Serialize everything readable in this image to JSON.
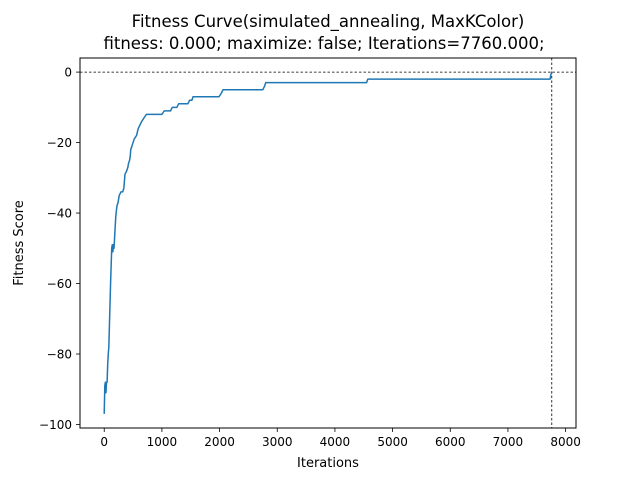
{
  "chart_data": {
    "type": "line",
    "title": "Fitness Curve(simulated_annealing, MaxKColor)",
    "subtitle": "fitness: 0.000; maximize: false; Iterations=7760.000;",
    "xlabel": "Iterations",
    "ylabel": "Fitness Score",
    "xlim": [
      -420,
      8180
    ],
    "ylim": [
      -101,
      4
    ],
    "x_ticks": [
      0,
      1000,
      2000,
      3000,
      4000,
      5000,
      6000,
      7000,
      8000
    ],
    "y_ticks": [
      0,
      -20,
      -40,
      -60,
      -80,
      -100
    ],
    "x_tick_labels": [
      "0",
      "1000",
      "2000",
      "3000",
      "4000",
      "5000",
      "6000",
      "7000",
      "8000"
    ],
    "y_tick_labels": [
      "0",
      "−20",
      "−40",
      "−60",
      "−80",
      "−100"
    ],
    "grid": false,
    "legend": false,
    "reference_lines": {
      "horizontal_y": 0,
      "vertical_x": 7760,
      "style": "dashed"
    },
    "series": [
      {
        "color": "#1f77b4",
        "points": [
          [
            0,
            -97
          ],
          [
            5,
            -93
          ],
          [
            10,
            -89
          ],
          [
            20,
            -88
          ],
          [
            30,
            -91
          ],
          [
            40,
            -88
          ],
          [
            50,
            -88
          ],
          [
            60,
            -83
          ],
          [
            70,
            -80
          ],
          [
            80,
            -78
          ],
          [
            90,
            -72
          ],
          [
            100,
            -66
          ],
          [
            110,
            -60
          ],
          [
            120,
            -55
          ],
          [
            130,
            -50
          ],
          [
            140,
            -49
          ],
          [
            150,
            -51
          ],
          [
            160,
            -49
          ],
          [
            170,
            -50
          ],
          [
            180,
            -47
          ],
          [
            190,
            -44
          ],
          [
            200,
            -41
          ],
          [
            220,
            -38
          ],
          [
            240,
            -37
          ],
          [
            260,
            -35
          ],
          [
            290,
            -34
          ],
          [
            320,
            -34
          ],
          [
            340,
            -33
          ],
          [
            350,
            -31
          ],
          [
            360,
            -29
          ],
          [
            390,
            -28
          ],
          [
            410,
            -27
          ],
          [
            420,
            -26
          ],
          [
            440,
            -25
          ],
          [
            450,
            -24
          ],
          [
            460,
            -22
          ],
          [
            480,
            -21
          ],
          [
            500,
            -20
          ],
          [
            520,
            -19
          ],
          [
            560,
            -18
          ],
          [
            590,
            -16
          ],
          [
            620,
            -15
          ],
          [
            650,
            -14
          ],
          [
            690,
            -13
          ],
          [
            730,
            -12
          ],
          [
            760,
            -12
          ],
          [
            1000,
            -12
          ],
          [
            1040,
            -11
          ],
          [
            1150,
            -11
          ],
          [
            1180,
            -10
          ],
          [
            1260,
            -10
          ],
          [
            1290,
            -9
          ],
          [
            1450,
            -9
          ],
          [
            1480,
            -8
          ],
          [
            1520,
            -8
          ],
          [
            1540,
            -7
          ],
          [
            1990,
            -7
          ],
          [
            2030,
            -6
          ],
          [
            2060,
            -5
          ],
          [
            2750,
            -5
          ],
          [
            2780,
            -4
          ],
          [
            2800,
            -3
          ],
          [
            4550,
            -3
          ],
          [
            4570,
            -2
          ],
          [
            7730,
            -2
          ],
          [
            7740,
            -1
          ],
          [
            7760,
            0
          ]
        ]
      }
    ]
  }
}
